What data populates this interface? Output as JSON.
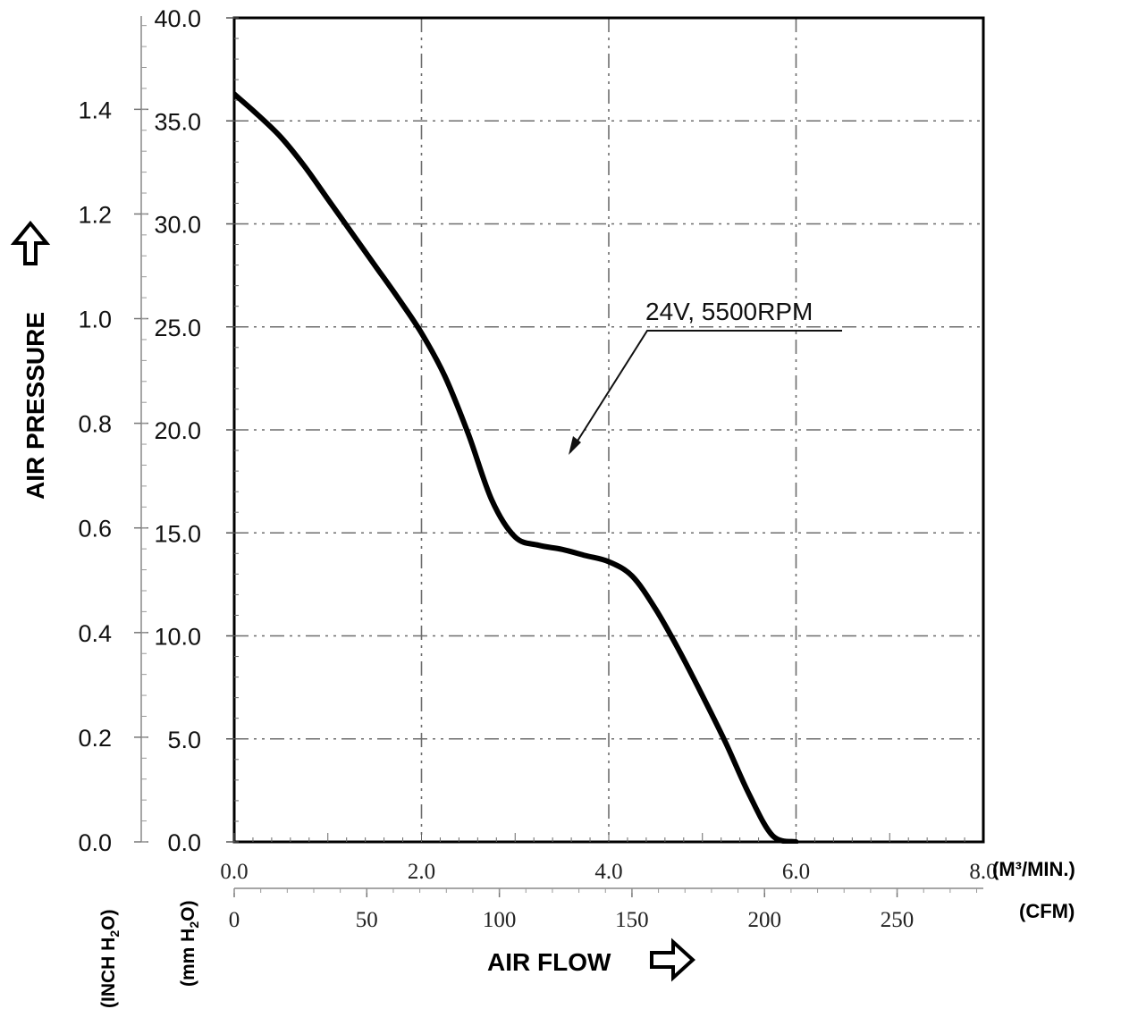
{
  "chart_data": {
    "type": "line",
    "series": [
      {
        "name": "24V, 5500RPM",
        "x": [
          0,
          0.25,
          0.5,
          0.75,
          1.0,
          1.25,
          1.5,
          1.75,
          2.0,
          2.25,
          2.5,
          2.75,
          3.0,
          3.25,
          3.5,
          3.75,
          4.0,
          4.25,
          4.5,
          4.75,
          5.0,
          5.25,
          5.5,
          5.75,
          6.0,
          6.25,
          6.5,
          6.75,
          7.0,
          7.1
        ],
        "y": [
          36.3,
          35.3,
          34.2,
          32.8,
          31.2,
          29.6,
          28.0,
          26.4,
          24.7,
          22.6,
          19.8,
          16.6,
          14.8,
          14.4,
          14.2,
          13.9,
          13.6,
          12.9,
          11.3,
          9.3,
          7.1,
          4.8,
          2.3,
          0.3,
          0.0,
          0,
          0,
          0,
          0,
          0
        ]
      }
    ],
    "annotation": "24V, 5500RPM",
    "y_left_outer": {
      "label": "AIR PRESSURE",
      "unit": "(INCH H2O)",
      "ticks": [
        "0.0",
        "0.2",
        "0.4",
        "0.6",
        "0.8",
        "1.0",
        "1.2",
        "1.4"
      ]
    },
    "y_left_inner": {
      "unit": "(mm H2O)",
      "ticks": [
        "0.0",
        "5.0",
        "10.0",
        "15.0",
        "20.0",
        "25.0",
        "30.0",
        "35.0",
        "40.0"
      ],
      "ylim": [
        0,
        40
      ]
    },
    "x_top": {
      "unit": "(M³/MIN.)",
      "ticks": [
        "0.0",
        "2.0",
        "4.0",
        "6.0",
        "8.0"
      ],
      "xlim": [
        0,
        8
      ]
    },
    "x_bottom": {
      "unit": "(CFM)",
      "ticks": [
        "0",
        "50",
        "100",
        "150",
        "200",
        "250"
      ]
    },
    "xlabel": "AIR FLOW",
    "grid": true
  }
}
